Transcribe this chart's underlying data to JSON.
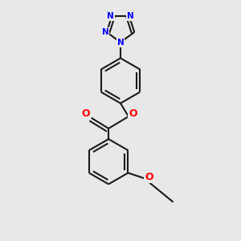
{
  "bg_color": "#e8e8e8",
  "bond_color": "#1a1a1a",
  "n_color": "#0000ff",
  "o_color": "#ff0000",
  "bond_width": 1.5,
  "fig_width": 3.0,
  "fig_height": 3.0,
  "dpi": 100,
  "xlim": [
    -2.5,
    2.5
  ],
  "ylim": [
    -4.5,
    4.5
  ]
}
